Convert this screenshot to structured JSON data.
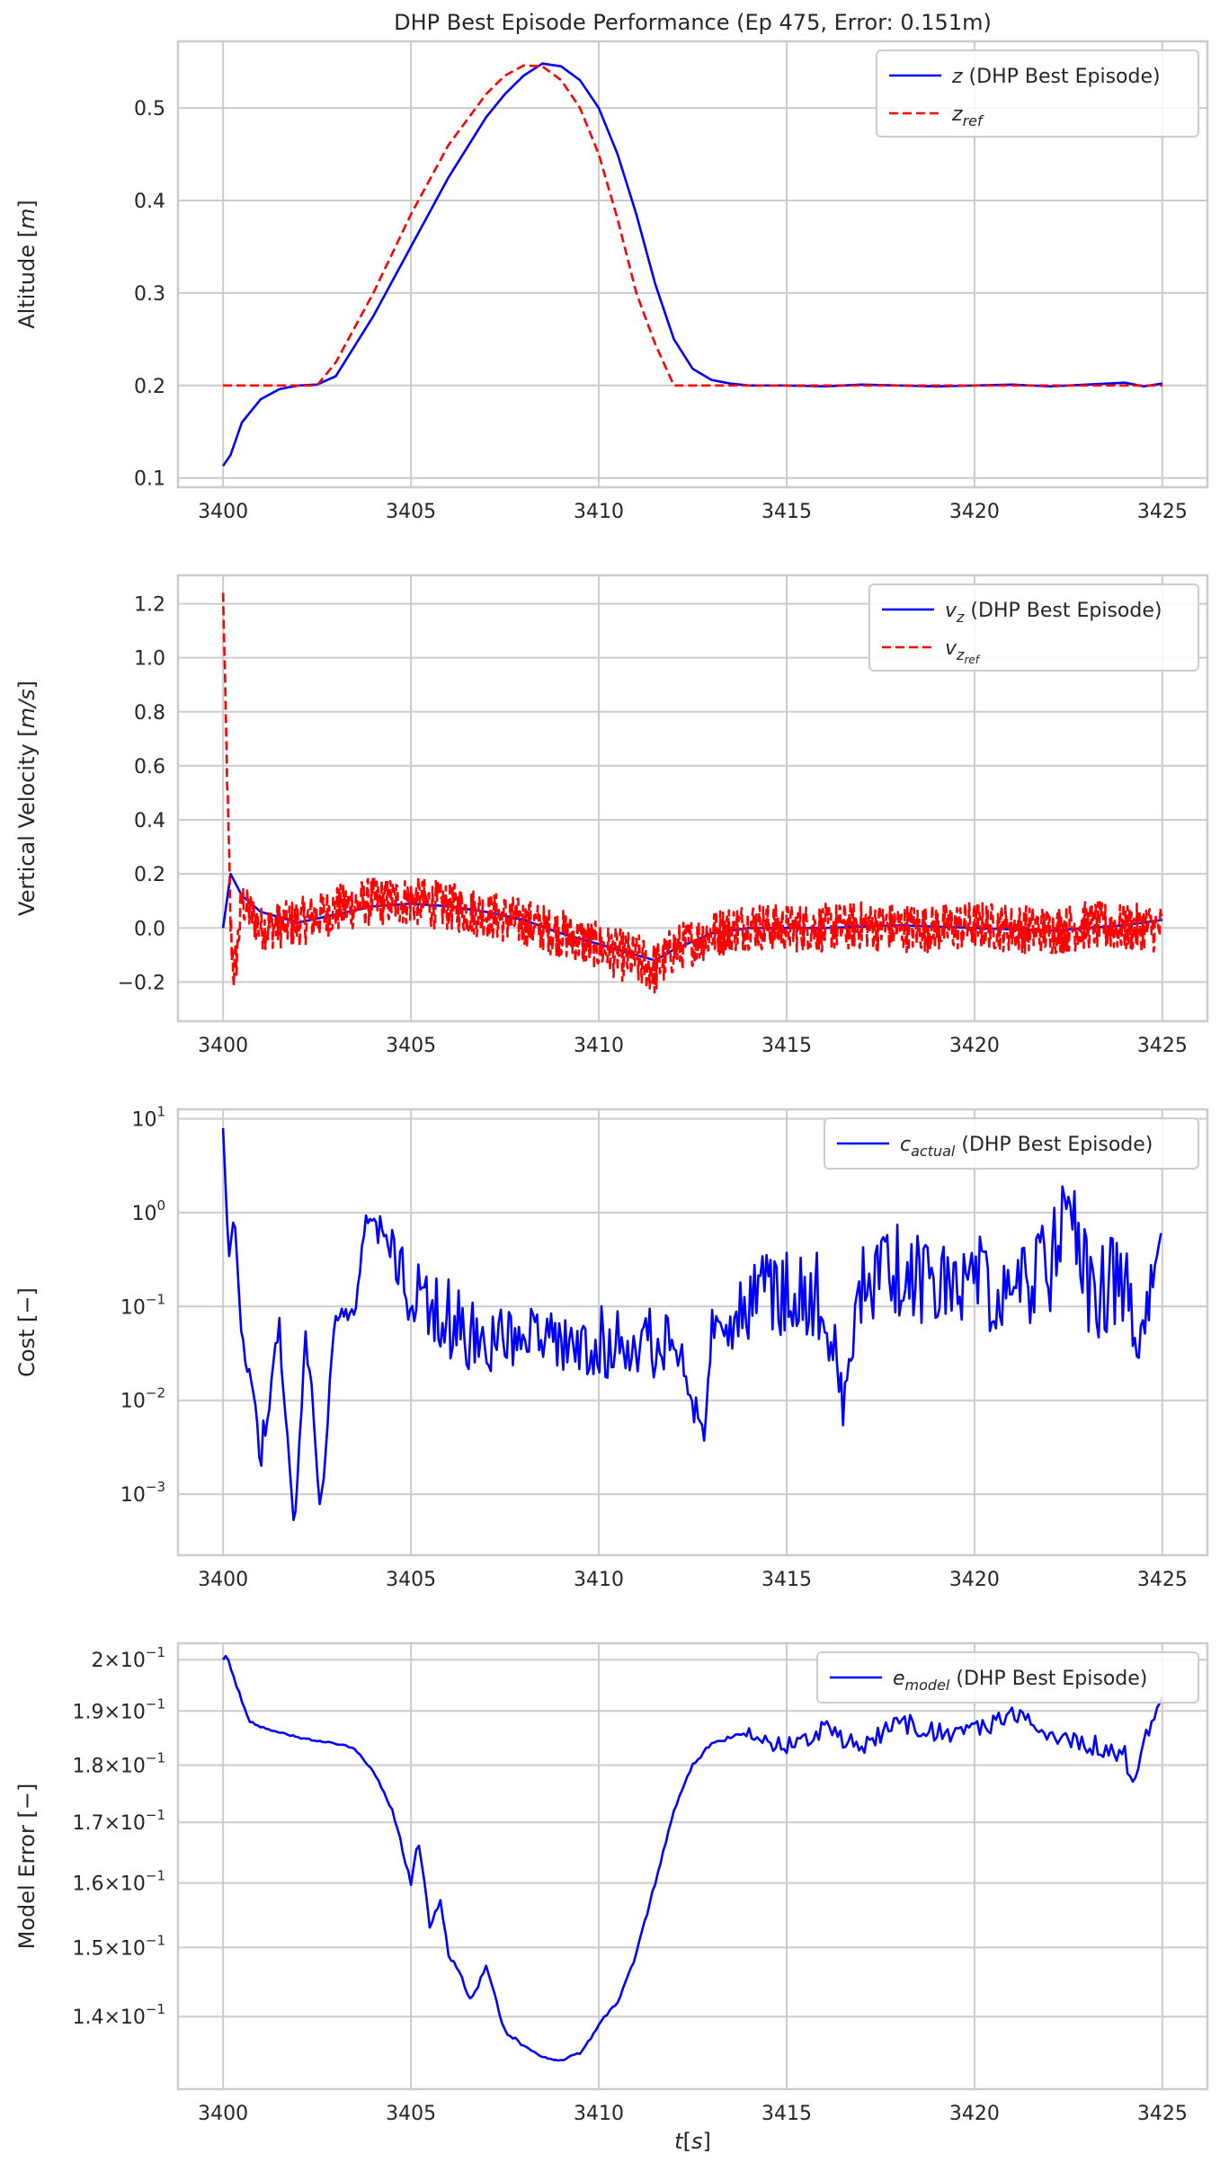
{
  "chart_data": [
    {
      "type": "line",
      "title": "DHP Best Episode Performance (Ep 475, Error: 0.151m)",
      "ylabel_main": "Altitude [",
      "ylabel_var": "m",
      "ylabel_end": "]",
      "xlim": [
        3398.8,
        3426.2
      ],
      "ylim": [
        0.09,
        0.572
      ],
      "x_ticks": [
        "3400",
        "3405",
        "3410",
        "3415",
        "3420",
        "3425"
      ],
      "y_ticks": [
        "0.1",
        "0.2",
        "0.3",
        "0.4",
        "0.5"
      ],
      "y_tick_values": [
        0.1,
        0.2,
        0.3,
        0.4,
        0.5
      ],
      "y_scale": "linear",
      "grid": true,
      "legend_position": "top-right",
      "series": [
        {
          "name": "z (DHP Best Episode)",
          "legend_var": "z",
          "legend_var_sub": "",
          "legend_rest": " (DHP Best Episode)",
          "style": "solid",
          "color": "#0000ff",
          "x": [
            3400,
            3400.2,
            3400.5,
            3401,
            3401.5,
            3402,
            3402.5,
            3403,
            3404,
            3405,
            3406,
            3407,
            3407.5,
            3408,
            3408.5,
            3409,
            3409.5,
            3410,
            3410.5,
            3411,
            3411.5,
            3412,
            3412.5,
            3413,
            3413.5,
            3414,
            3415,
            3416,
            3417,
            3418,
            3419,
            3420,
            3421,
            3422,
            3423,
            3424,
            3424.5,
            3425
          ],
          "y": [
            0.113,
            0.125,
            0.16,
            0.185,
            0.196,
            0.2,
            0.201,
            0.21,
            0.275,
            0.35,
            0.425,
            0.49,
            0.515,
            0.535,
            0.548,
            0.545,
            0.53,
            0.5,
            0.45,
            0.385,
            0.31,
            0.25,
            0.218,
            0.206,
            0.202,
            0.2,
            0.2,
            0.199,
            0.201,
            0.2,
            0.199,
            0.2,
            0.201,
            0.199,
            0.201,
            0.203,
            0.199,
            0.202
          ]
        },
        {
          "name": "z_ref",
          "legend_var": "z",
          "legend_var_sub": "ref",
          "legend_rest": "",
          "style": "dashed",
          "color": "#ff0000",
          "x": [
            3400,
            3402.5,
            3403,
            3404,
            3405,
            3406,
            3407,
            3407.5,
            3408,
            3408.5,
            3409,
            3409.5,
            3410,
            3410.5,
            3411,
            3411.5,
            3412,
            3413,
            3415,
            3420,
            3425
          ],
          "y": [
            0.2,
            0.2,
            0.225,
            0.3,
            0.385,
            0.46,
            0.515,
            0.535,
            0.546,
            0.545,
            0.53,
            0.5,
            0.45,
            0.38,
            0.3,
            0.245,
            0.2,
            0.2,
            0.2,
            0.2,
            0.2
          ]
        }
      ]
    },
    {
      "type": "line",
      "ylabel_main": "Vertical Velocity [",
      "ylabel_var": "m/s",
      "ylabel_end": "]",
      "xlim": [
        3398.8,
        3426.2
      ],
      "ylim": [
        -0.345,
        1.305
      ],
      "x_ticks": [
        "3400",
        "3405",
        "3410",
        "3415",
        "3420",
        "3425"
      ],
      "y_ticks": [
        "−0.2",
        "0.0",
        "0.2",
        "0.4",
        "0.6",
        "0.8",
        "1.0",
        "1.2"
      ],
      "y_tick_values": [
        -0.2,
        0.0,
        0.2,
        0.4,
        0.6,
        0.8,
        1.0,
        1.2
      ],
      "y_scale": "linear",
      "grid": true,
      "legend_position": "top-right",
      "series": [
        {
          "name": "v_z (DHP Best Episode)",
          "legend_var": "v",
          "legend_var_sub": "z",
          "legend_rest": " (DHP Best Episode)",
          "style": "solid",
          "color": "#0000ff",
          "x": [
            3400,
            3400.2,
            3400.5,
            3401,
            3402,
            3403,
            3404,
            3405,
            3406,
            3407,
            3408,
            3409,
            3410,
            3411,
            3411.5,
            3412,
            3413,
            3414,
            3415,
            3416,
            3418,
            3420,
            3422,
            3424,
            3425
          ],
          "y": [
            0.0,
            0.2,
            0.12,
            0.06,
            0.02,
            0.05,
            0.08,
            0.09,
            0.08,
            0.06,
            0.03,
            -0.02,
            -0.06,
            -0.1,
            -0.12,
            -0.08,
            -0.02,
            0.0,
            0.0,
            0.0,
            0.01,
            0.0,
            -0.01,
            0.01,
            0.03
          ]
        },
        {
          "name": "v_z_ref",
          "legend_var": "v",
          "legend_var_sub": "z",
          "legend_var_subsub": "ref",
          "legend_rest": "",
          "style": "dashed",
          "color": "#ff0000",
          "x": [
            3400,
            3400.1,
            3400.2,
            3400.3,
            3400.5,
            3401,
            3402,
            3403,
            3404,
            3405,
            3406,
            3407,
            3408,
            3409,
            3410,
            3411,
            3411.5,
            3412,
            3413,
            3414,
            3415,
            3416,
            3417,
            3418,
            3419,
            3420,
            3421,
            3422,
            3423,
            3424,
            3425
          ],
          "y": [
            1.24,
            0.6,
            0.0,
            -0.18,
            0.1,
            0.0,
            0.02,
            0.07,
            0.1,
            0.1,
            0.08,
            0.05,
            0.02,
            -0.02,
            -0.07,
            -0.12,
            -0.15,
            -0.08,
            -0.02,
            0.01,
            0.0,
            0.0,
            0.01,
            0.0,
            0.0,
            0.01,
            0.0,
            -0.01,
            0.01,
            0.0,
            0.0
          ],
          "noise_band": [
            0.0,
            0.05,
            0.1,
            0.1,
            0.08,
            0.08,
            0.09,
            0.09,
            0.09,
            0.09,
            0.09,
            0.09,
            0.09,
            0.09,
            0.09,
            0.1,
            0.1,
            0.09,
            0.09,
            0.09,
            0.09,
            0.09,
            0.09,
            0.09,
            0.09,
            0.09,
            0.09,
            0.09,
            0.09,
            0.09,
            0.09
          ]
        }
      ]
    },
    {
      "type": "line",
      "ylabel_main": "Cost [",
      "ylabel_var": "−",
      "ylabel_end": "]",
      "xlim": [
        3398.8,
        3426.2
      ],
      "ylim_log10": [
        -3.65,
        1.1
      ],
      "x_ticks": [
        "3400",
        "3405",
        "3410",
        "3415",
        "3420",
        "3425"
      ],
      "y_ticks_base": "10",
      "y_ticks_exp": [
        "−3",
        "−2",
        "−1",
        "0",
        "1"
      ],
      "y_tick_log10": [
        -3,
        -2,
        -1,
        0,
        1
      ],
      "y_scale": "log",
      "grid": true,
      "legend_position": "top-right",
      "series": [
        {
          "name": "c_actual (DHP Best Episode)",
          "legend_var": "c",
          "legend_var_sub": "actual",
          "legend_rest": " (DHP Best Episode)",
          "style": "solid",
          "color": "#0000ff",
          "x": [
            3400,
            3400.15,
            3400.3,
            3400.5,
            3400.8,
            3401,
            3401.5,
            3401.9,
            3402.2,
            3402.6,
            3403,
            3403.5,
            3403.8,
            3404.5,
            3405,
            3406,
            3407,
            3407.5,
            3408,
            3409,
            3410,
            3411,
            3412,
            3412.5,
            3412.8,
            3413,
            3413.5,
            3414,
            3415,
            3416,
            3416.5,
            3417,
            3418,
            3419,
            3420,
            3421,
            3422,
            3422.5,
            3423,
            3424,
            3424.4,
            3425
          ],
          "y_log10": [
            0.9,
            -0.5,
            0.0,
            -1.2,
            -1.8,
            -2.4,
            -1.1,
            -3.4,
            -1.1,
            -2.95,
            -1.0,
            -1.0,
            0.05,
            -0.1,
            -0.5,
            -0.7,
            -1.0,
            -1.0,
            -1.0,
            -1.0,
            -0.9,
            -1.0,
            -1.0,
            -1.8,
            -2.35,
            -1.0,
            -1.0,
            -0.5,
            -0.3,
            -0.4,
            -1.7,
            -0.2,
            -0.1,
            -0.3,
            -0.2,
            -0.3,
            -0.1,
            0.6,
            -0.3,
            -0.2,
            -1.1,
            0.0
          ],
          "noise_log10": [
            0.0,
            0.0,
            0.0,
            0.3,
            0.3,
            0.4,
            0.3,
            0.0,
            0.3,
            0.3,
            0.15,
            0.15,
            0.15,
            0.5,
            0.9,
            0.9,
            0.8,
            0.7,
            0.6,
            0.7,
            0.9,
            0.7,
            0.6,
            0.4,
            0.2,
            0.4,
            0.5,
            0.9,
            1.0,
            1.0,
            0.6,
            1.0,
            1.0,
            1.0,
            1.0,
            1.0,
            1.0,
            0.7,
            1.0,
            1.0,
            0.6,
            0.4
          ]
        }
      ]
    },
    {
      "type": "line",
      "ylabel_main": "Model Error [",
      "ylabel_var": "−",
      "ylabel_end": "]",
      "xlabel_var": "t",
      "xlabel_rest": "[",
      "xlabel_var2": "s",
      "xlabel_end": "]",
      "xlim": [
        3398.8,
        3426.2
      ],
      "ylim": [
        0.1302,
        0.2033
      ],
      "x_ticks": [
        "3400",
        "3405",
        "3410",
        "3415",
        "3420",
        "3425"
      ],
      "y_ticks_mant": [
        "2",
        "1.9",
        "1.8",
        "1.7",
        "1.6",
        "1.5",
        "1.4"
      ],
      "y_ticks_base": "10",
      "y_ticks_exp": "−1",
      "y_tick_values": [
        0.2,
        0.19,
        0.18,
        0.17,
        0.16,
        0.15,
        0.14
      ],
      "y_scale": "log",
      "grid": true,
      "legend_position": "top-right",
      "series": [
        {
          "name": "e_model (DHP Best Episode)",
          "legend_var": "e",
          "legend_var_sub": "model",
          "legend_rest": " (DHP Best Episode)",
          "style": "solid",
          "color": "#0000ff",
          "x": [
            3400,
            3400.1,
            3400.3,
            3400.5,
            3400.7,
            3401,
            3402,
            3403,
            3403.5,
            3404,
            3404.5,
            3404.8,
            3405,
            3405.2,
            3405.5,
            3405.8,
            3406,
            3406.3,
            3406.6,
            3407,
            3407.5,
            3408,
            3408.5,
            3409,
            3409.5,
            3409.8,
            3410,
            3410.5,
            3411,
            3411.5,
            3412,
            3412.5,
            3413,
            3413.5,
            3414,
            3415,
            3416,
            3417,
            3418,
            3419,
            3420,
            3421,
            3422,
            3423,
            3424,
            3424.2,
            3424.5,
            3425
          ],
          "y": [
            0.2,
            0.201,
            0.196,
            0.192,
            0.188,
            0.187,
            0.185,
            0.184,
            0.183,
            0.179,
            0.172,
            0.165,
            0.16,
            0.167,
            0.153,
            0.157,
            0.149,
            0.146,
            0.142,
            0.147,
            0.138,
            0.136,
            0.1345,
            0.134,
            0.135,
            0.137,
            0.139,
            0.142,
            0.149,
            0.16,
            0.172,
            0.18,
            0.184,
            0.185,
            0.186,
            0.183,
            0.187,
            0.183,
            0.188,
            0.186,
            0.186,
            0.189,
            0.186,
            0.184,
            0.182,
            0.176,
            0.184,
            0.193
          ],
          "noise_rel": [
            0.0,
            0.0,
            0.005,
            0.004,
            0.003,
            0.002,
            0.002,
            0.002,
            0.002,
            0.003,
            0.003,
            0.006,
            0.008,
            0.008,
            0.008,
            0.008,
            0.007,
            0.007,
            0.007,
            0.006,
            0.004,
            0.003,
            0.002,
            0.002,
            0.002,
            0.003,
            0.004,
            0.004,
            0.004,
            0.004,
            0.004,
            0.004,
            0.003,
            0.004,
            0.01,
            0.02,
            0.02,
            0.02,
            0.02,
            0.02,
            0.02,
            0.02,
            0.02,
            0.02,
            0.02,
            0.015,
            0.015,
            0.01
          ]
        }
      ]
    }
  ]
}
